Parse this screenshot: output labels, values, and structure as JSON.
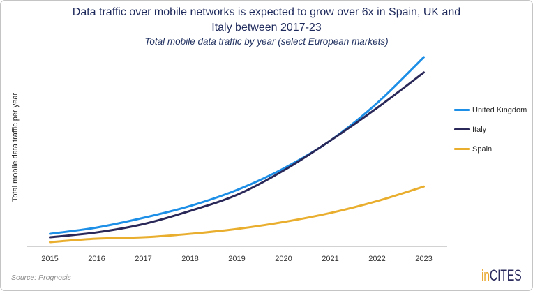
{
  "chart_data": {
    "type": "line",
    "title": [
      "Data traffic over mobile networks is expected to grow over 6x in Spain, UK and",
      "Italy between 2017-23"
    ],
    "subtitle": "Total mobile data traffic by year (select European markets)",
    "xlabel": "",
    "ylabel": "Total mobile data traffic per year",
    "categories": [
      "2015",
      "2016",
      "2017",
      "2018",
      "2019",
      "2020",
      "2021",
      "2022",
      "2023"
    ],
    "ylim": [
      0,
      29
    ],
    "y_tick_labels": false,
    "grid": false,
    "smooth_lines": true,
    "legend_position": "right",
    "series": [
      {
        "name": "United Kingdom",
        "color": "#1E8FE6",
        "values": [
          1.8,
          2.7,
          4.1,
          5.8,
          8.1,
          11.2,
          15.2,
          20.6,
          27.2
        ]
      },
      {
        "name": "Italy",
        "color": "#2A2858",
        "values": [
          1.3,
          2.0,
          3.2,
          5.1,
          7.4,
          10.9,
          15.2,
          19.9,
          25.0
        ]
      },
      {
        "name": "Spain",
        "color": "#E9AE2E",
        "values": [
          0.6,
          1.1,
          1.3,
          1.8,
          2.5,
          3.5,
          4.8,
          6.5,
          8.6
        ]
      }
    ]
  },
  "source": "Source: Prognosis",
  "logo": {
    "prefix": "in",
    "suffix": "CITES",
    "prefix_color": "#E9A82C",
    "suffix_color": "#2B2B5E"
  }
}
